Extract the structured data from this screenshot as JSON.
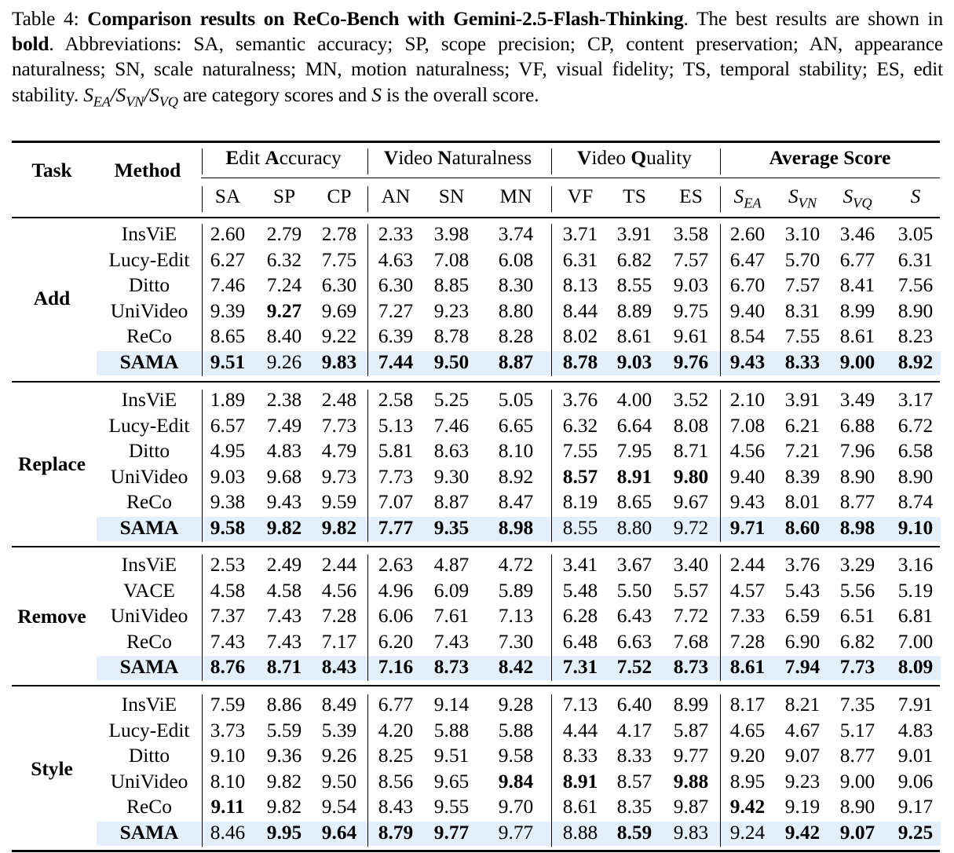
{
  "caption": {
    "label": "Table 4:",
    "title": "Comparison results on ReCo-Bench with Gemini-2.5-Flash-Thinking",
    "text_1": ". The best results are shown in ",
    "bold_word": "bold",
    "text_2": ". Abbreviations: SA, semantic accuracy; SP, scope precision; CP, content preservation; AN, appearance naturalness; SN, scale naturalness; MN, motion naturalness; VF, visual fidelity; TS, temporal stability; ES, edit stability. ",
    "math_scores": "S_EA/S_VN/S_VQ",
    "text_3": " are category scores and ",
    "math_s": "S",
    "text_4": " is the overall score."
  },
  "table": {
    "headers": {
      "task": "Task",
      "method": "Method",
      "groups": [
        {
          "first_bold": "E",
          "rest_1": "dit ",
          "second_bold": "A",
          "rest_2": "ccuracy"
        },
        {
          "first_bold": "V",
          "rest_1": "ideo ",
          "second_bold": "N",
          "rest_2": "aturalness"
        },
        {
          "first_bold": "V",
          "rest_1": "ideo ",
          "second_bold": "Q",
          "rest_2": "uality"
        },
        {
          "label": "Average Score"
        }
      ],
      "columns": [
        "SA",
        "SP",
        "CP",
        "AN",
        "SN",
        "MN",
        "VF",
        "TS",
        "ES",
        "S_EA",
        "S_VN",
        "S_VQ",
        "S"
      ]
    },
    "highlight_color": "#e3f0fb",
    "sections": [
      {
        "task": "Add",
        "rows": [
          {
            "method": "InsViE",
            "values": [
              "2.60",
              "2.79",
              "2.78",
              "2.33",
              "3.98",
              "3.74",
              "3.71",
              "3.91",
              "3.58",
              "2.60",
              "3.10",
              "3.46",
              "3.05"
            ],
            "bold": []
          },
          {
            "method": "Lucy-Edit",
            "values": [
              "6.27",
              "6.32",
              "7.75",
              "4.63",
              "7.08",
              "6.08",
              "6.31",
              "6.82",
              "7.57",
              "6.47",
              "5.70",
              "6.77",
              "6.31"
            ],
            "bold": []
          },
          {
            "method": "Ditto",
            "values": [
              "7.46",
              "7.24",
              "6.30",
              "6.30",
              "8.85",
              "8.30",
              "8.13",
              "8.55",
              "9.03",
              "6.70",
              "7.57",
              "8.41",
              "7.56"
            ],
            "bold": []
          },
          {
            "method": "UniVideo",
            "values": [
              "9.39",
              "9.27",
              "9.69",
              "7.27",
              "9.23",
              "8.80",
              "8.44",
              "8.89",
              "9.75",
              "9.40",
              "8.31",
              "8.99",
              "8.90"
            ],
            "bold": [
              1
            ]
          },
          {
            "method": "ReCo",
            "values": [
              "8.65",
              "8.40",
              "9.22",
              "6.39",
              "8.78",
              "8.28",
              "8.02",
              "8.61",
              "9.61",
              "8.54",
              "7.55",
              "8.61",
              "8.23"
            ],
            "bold": []
          },
          {
            "method": "SAMA",
            "highlight": true,
            "values": [
              "9.51",
              "9.26",
              "9.83",
              "7.44",
              "9.50",
              "8.87",
              "8.78",
              "9.03",
              "9.76",
              "9.43",
              "8.33",
              "9.00",
              "8.92"
            ],
            "bold": [
              0,
              2,
              3,
              4,
              5,
              6,
              7,
              8,
              9,
              10,
              11,
              12
            ]
          }
        ]
      },
      {
        "task": "Replace",
        "rows": [
          {
            "method": "InsViE",
            "values": [
              "1.89",
              "2.38",
              "2.48",
              "2.58",
              "5.25",
              "5.05",
              "3.76",
              "4.00",
              "3.52",
              "2.10",
              "3.91",
              "3.49",
              "3.17"
            ],
            "bold": []
          },
          {
            "method": "Lucy-Edit",
            "values": [
              "6.57",
              "7.49",
              "7.73",
              "5.13",
              "7.46",
              "6.65",
              "6.32",
              "6.64",
              "8.08",
              "7.08",
              "6.21",
              "6.88",
              "6.72"
            ],
            "bold": []
          },
          {
            "method": "Ditto",
            "values": [
              "4.95",
              "4.83",
              "4.79",
              "5.81",
              "8.63",
              "8.10",
              "7.55",
              "7.95",
              "8.71",
              "4.56",
              "7.21",
              "7.96",
              "6.58"
            ],
            "bold": []
          },
          {
            "method": "UniVideo",
            "values": [
              "9.03",
              "9.68",
              "9.73",
              "7.73",
              "9.30",
              "8.92",
              "8.57",
              "8.91",
              "9.80",
              "9.40",
              "8.39",
              "8.90",
              "8.90"
            ],
            "bold": [
              6,
              7,
              8
            ]
          },
          {
            "method": "ReCo",
            "values": [
              "9.38",
              "9.43",
              "9.59",
              "7.07",
              "8.87",
              "8.47",
              "8.19",
              "8.65",
              "9.67",
              "9.43",
              "8.01",
              "8.77",
              "8.74"
            ],
            "bold": []
          },
          {
            "method": "SAMA",
            "highlight": true,
            "values": [
              "9.58",
              "9.82",
              "9.82",
              "7.77",
              "9.35",
              "8.98",
              "8.55",
              "8.80",
              "9.72",
              "9.71",
              "8.60",
              "8.98",
              "9.10"
            ],
            "bold": [
              0,
              1,
              2,
              3,
              4,
              5,
              9,
              10,
              11,
              12
            ]
          }
        ]
      },
      {
        "task": "Remove",
        "rows": [
          {
            "method": "InsViE",
            "values": [
              "2.53",
              "2.49",
              "2.44",
              "2.63",
              "4.87",
              "4.72",
              "3.41",
              "3.67",
              "3.40",
              "2.44",
              "3.76",
              "3.29",
              "3.16"
            ],
            "bold": []
          },
          {
            "method": "VACE",
            "values": [
              "4.58",
              "4.58",
              "4.56",
              "4.96",
              "6.09",
              "5.89",
              "5.48",
              "5.50",
              "5.57",
              "4.57",
              "5.43",
              "5.56",
              "5.19"
            ],
            "bold": []
          },
          {
            "method": "UniVideo",
            "values": [
              "7.37",
              "7.43",
              "7.28",
              "6.06",
              "7.61",
              "7.13",
              "6.28",
              "6.43",
              "7.72",
              "7.33",
              "6.59",
              "6.51",
              "6.81"
            ],
            "bold": []
          },
          {
            "method": "ReCo",
            "values": [
              "7.43",
              "7.43",
              "7.17",
              "6.20",
              "7.43",
              "7.30",
              "6.48",
              "6.63",
              "7.68",
              "7.28",
              "6.90",
              "6.82",
              "7.00"
            ],
            "bold": []
          },
          {
            "method": "SAMA",
            "highlight": true,
            "values": [
              "8.76",
              "8.71",
              "8.43",
              "7.16",
              "8.73",
              "8.42",
              "7.31",
              "7.52",
              "8.73",
              "8.61",
              "7.94",
              "7.73",
              "8.09"
            ],
            "bold": [
              0,
              1,
              2,
              3,
              4,
              5,
              6,
              7,
              8,
              9,
              10,
              11,
              12
            ]
          }
        ]
      },
      {
        "task": "Style",
        "rows": [
          {
            "method": "InsViE",
            "values": [
              "7.59",
              "8.86",
              "8.49",
              "6.77",
              "9.14",
              "9.28",
              "7.13",
              "6.40",
              "8.99",
              "8.17",
              "8.21",
              "7.35",
              "7.91"
            ],
            "bold": []
          },
          {
            "method": "Lucy-Edit",
            "values": [
              "3.73",
              "5.59",
              "5.39",
              "4.20",
              "5.88",
              "5.88",
              "4.44",
              "4.17",
              "5.87",
              "4.65",
              "4.67",
              "5.17",
              "4.83"
            ],
            "bold": []
          },
          {
            "method": "Ditto",
            "values": [
              "9.10",
              "9.36",
              "9.26",
              "8.25",
              "9.51",
              "9.58",
              "8.33",
              "8.33",
              "9.77",
              "9.20",
              "9.07",
              "8.77",
              "9.01"
            ],
            "bold": []
          },
          {
            "method": "UniVideo",
            "values": [
              "8.10",
              "9.82",
              "9.50",
              "8.56",
              "9.65",
              "9.84",
              "8.91",
              "8.57",
              "9.88",
              "8.95",
              "9.23",
              "9.00",
              "9.06"
            ],
            "bold": [
              5,
              6,
              8
            ]
          },
          {
            "method": "ReCo",
            "values": [
              "9.11",
              "9.82",
              "9.54",
              "8.43",
              "9.55",
              "9.70",
              "8.61",
              "8.35",
              "9.87",
              "9.42",
              "9.19",
              "8.90",
              "9.17"
            ],
            "bold": [
              0,
              9
            ]
          },
          {
            "method": "SAMA",
            "highlight": true,
            "values": [
              "8.46",
              "9.95",
              "9.64",
              "8.79",
              "9.77",
              "9.77",
              "8.88",
              "8.59",
              "9.83",
              "9.24",
              "9.42",
              "9.07",
              "9.25"
            ],
            "bold": [
              1,
              2,
              3,
              4,
              7,
              10,
              11,
              12
            ]
          }
        ]
      }
    ]
  }
}
